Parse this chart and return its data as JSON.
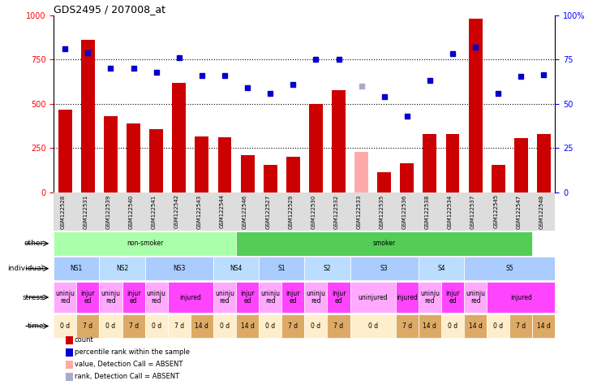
{
  "title": "GDS2495 / 207008_at",
  "samples": [
    "GSM122528",
    "GSM122531",
    "GSM122539",
    "GSM122540",
    "GSM122541",
    "GSM122542",
    "GSM122543",
    "GSM122544",
    "GSM122546",
    "GSM122527",
    "GSM122529",
    "GSM122530",
    "GSM122532",
    "GSM122533",
    "GSM122535",
    "GSM122536",
    "GSM122538",
    "GSM122534",
    "GSM122537",
    "GSM122545",
    "GSM122547",
    "GSM122548"
  ],
  "bar_values": [
    470,
    860,
    430,
    390,
    360,
    620,
    315,
    310,
    210,
    155,
    200,
    500,
    580,
    230,
    115,
    165,
    330,
    330,
    980,
    155,
    305,
    330
  ],
  "bar_absent": [
    false,
    false,
    false,
    false,
    false,
    false,
    false,
    false,
    false,
    false,
    false,
    false,
    false,
    true,
    false,
    false,
    false,
    false,
    false,
    false,
    false,
    false
  ],
  "dot_values": [
    810,
    790,
    700,
    700,
    680,
    760,
    660,
    660,
    590,
    560,
    610,
    750,
    750,
    600,
    540,
    430,
    635,
    785,
    820,
    560,
    655,
    665
  ],
  "dot_absent": [
    false,
    false,
    false,
    false,
    false,
    false,
    false,
    false,
    false,
    false,
    false,
    false,
    false,
    true,
    false,
    false,
    false,
    false,
    false,
    false,
    false,
    false
  ],
  "bar_color": "#cc0000",
  "bar_absent_color": "#ffaaaa",
  "dot_color": "#0000cc",
  "dot_absent_color": "#aaaacc",
  "ylim_left": [
    0,
    1000
  ],
  "ylim_right": [
    0,
    100
  ],
  "yticks_left": [
    0,
    250,
    500,
    750,
    1000
  ],
  "yticks_right": [
    0,
    25,
    50,
    75,
    100
  ],
  "ytick_labels_right": [
    "0",
    "25",
    "50",
    "75",
    "100%"
  ],
  "hlines": [
    250,
    500,
    750
  ],
  "other_row": {
    "label": "other",
    "groups": [
      {
        "text": "non-smoker",
        "start": 0,
        "end": 8,
        "color": "#aaffaa"
      },
      {
        "text": "smoker",
        "start": 8,
        "end": 21,
        "color": "#55cc55"
      }
    ]
  },
  "individual_row": {
    "label": "individual",
    "groups": [
      {
        "text": "NS1",
        "start": 0,
        "end": 2,
        "color": "#aaccff"
      },
      {
        "text": "NS2",
        "start": 2,
        "end": 4,
        "color": "#bbddff"
      },
      {
        "text": "NS3",
        "start": 4,
        "end": 7,
        "color": "#aaccff"
      },
      {
        "text": "NS4",
        "start": 7,
        "end": 9,
        "color": "#bbddff"
      },
      {
        "text": "S1",
        "start": 9,
        "end": 11,
        "color": "#aaccff"
      },
      {
        "text": "S2",
        "start": 11,
        "end": 13,
        "color": "#bbddff"
      },
      {
        "text": "S3",
        "start": 13,
        "end": 16,
        "color": "#aaccff"
      },
      {
        "text": "S4",
        "start": 16,
        "end": 18,
        "color": "#bbddff"
      },
      {
        "text": "S5",
        "start": 18,
        "end": 22,
        "color": "#aaccff"
      }
    ]
  },
  "stress_row": {
    "label": "stress",
    "groups": [
      {
        "text": "uninju\nred",
        "start": 0,
        "end": 1,
        "color": "#ffaaff"
      },
      {
        "text": "injur\ned",
        "start": 1,
        "end": 2,
        "color": "#ff44ff"
      },
      {
        "text": "uninju\nred",
        "start": 2,
        "end": 3,
        "color": "#ffaaff"
      },
      {
        "text": "injur\ned",
        "start": 3,
        "end": 4,
        "color": "#ff44ff"
      },
      {
        "text": "uninju\nred",
        "start": 4,
        "end": 5,
        "color": "#ffaaff"
      },
      {
        "text": "injured",
        "start": 5,
        "end": 7,
        "color": "#ff44ff"
      },
      {
        "text": "uninju\nred",
        "start": 7,
        "end": 8,
        "color": "#ffaaff"
      },
      {
        "text": "injur\ned",
        "start": 8,
        "end": 9,
        "color": "#ff44ff"
      },
      {
        "text": "uninju\nred",
        "start": 9,
        "end": 10,
        "color": "#ffaaff"
      },
      {
        "text": "injur\ned",
        "start": 10,
        "end": 11,
        "color": "#ff44ff"
      },
      {
        "text": "uninju\nred",
        "start": 11,
        "end": 12,
        "color": "#ffaaff"
      },
      {
        "text": "injur\ned",
        "start": 12,
        "end": 13,
        "color": "#ff44ff"
      },
      {
        "text": "uninjured",
        "start": 13,
        "end": 15,
        "color": "#ffaaff"
      },
      {
        "text": "injured",
        "start": 15,
        "end": 16,
        "color": "#ff44ff"
      },
      {
        "text": "uninju\nred",
        "start": 16,
        "end": 17,
        "color": "#ffaaff"
      },
      {
        "text": "injur\ned",
        "start": 17,
        "end": 18,
        "color": "#ff44ff"
      },
      {
        "text": "uninju\nred",
        "start": 18,
        "end": 19,
        "color": "#ffaaff"
      },
      {
        "text": "injured",
        "start": 19,
        "end": 22,
        "color": "#ff44ff"
      }
    ]
  },
  "time_row": {
    "label": "time",
    "groups": [
      {
        "text": "0 d",
        "start": 0,
        "end": 1,
        "color": "#ffeecc"
      },
      {
        "text": "7 d",
        "start": 1,
        "end": 2,
        "color": "#ddaa66"
      },
      {
        "text": "0 d",
        "start": 2,
        "end": 3,
        "color": "#ffeecc"
      },
      {
        "text": "7 d",
        "start": 3,
        "end": 4,
        "color": "#ddaa66"
      },
      {
        "text": "0 d",
        "start": 4,
        "end": 5,
        "color": "#ffeecc"
      },
      {
        "text": "7 d",
        "start": 5,
        "end": 6,
        "color": "#ffeecc"
      },
      {
        "text": "14 d",
        "start": 6,
        "end": 7,
        "color": "#ddaa66"
      },
      {
        "text": "0 d",
        "start": 7,
        "end": 8,
        "color": "#ffeecc"
      },
      {
        "text": "14 d",
        "start": 8,
        "end": 9,
        "color": "#ddaa66"
      },
      {
        "text": "0 d",
        "start": 9,
        "end": 10,
        "color": "#ffeecc"
      },
      {
        "text": "7 d",
        "start": 10,
        "end": 11,
        "color": "#ddaa66"
      },
      {
        "text": "0 d",
        "start": 11,
        "end": 12,
        "color": "#ffeecc"
      },
      {
        "text": "7 d",
        "start": 12,
        "end": 13,
        "color": "#ddaa66"
      },
      {
        "text": "0 d",
        "start": 13,
        "end": 15,
        "color": "#ffeecc"
      },
      {
        "text": "7 d",
        "start": 15,
        "end": 16,
        "color": "#ddaa66"
      },
      {
        "text": "14 d",
        "start": 16,
        "end": 17,
        "color": "#ddaa66"
      },
      {
        "text": "0 d",
        "start": 17,
        "end": 18,
        "color": "#ffeecc"
      },
      {
        "text": "14 d",
        "start": 18,
        "end": 19,
        "color": "#ddaa66"
      },
      {
        "text": "0 d",
        "start": 19,
        "end": 20,
        "color": "#ffeecc"
      },
      {
        "text": "7 d",
        "start": 20,
        "end": 21,
        "color": "#ddaa66"
      },
      {
        "text": "14 d",
        "start": 21,
        "end": 22,
        "color": "#ddaa66"
      }
    ]
  },
  "legend": [
    {
      "label": "count",
      "color": "#cc0000",
      "marker": "s"
    },
    {
      "label": "percentile rank within the sample",
      "color": "#0000cc",
      "marker": "s"
    },
    {
      "label": "value, Detection Call = ABSENT",
      "color": "#ffaaaa",
      "marker": "s"
    },
    {
      "label": "rank, Detection Call = ABSENT",
      "color": "#aaaacc",
      "marker": "s"
    }
  ]
}
